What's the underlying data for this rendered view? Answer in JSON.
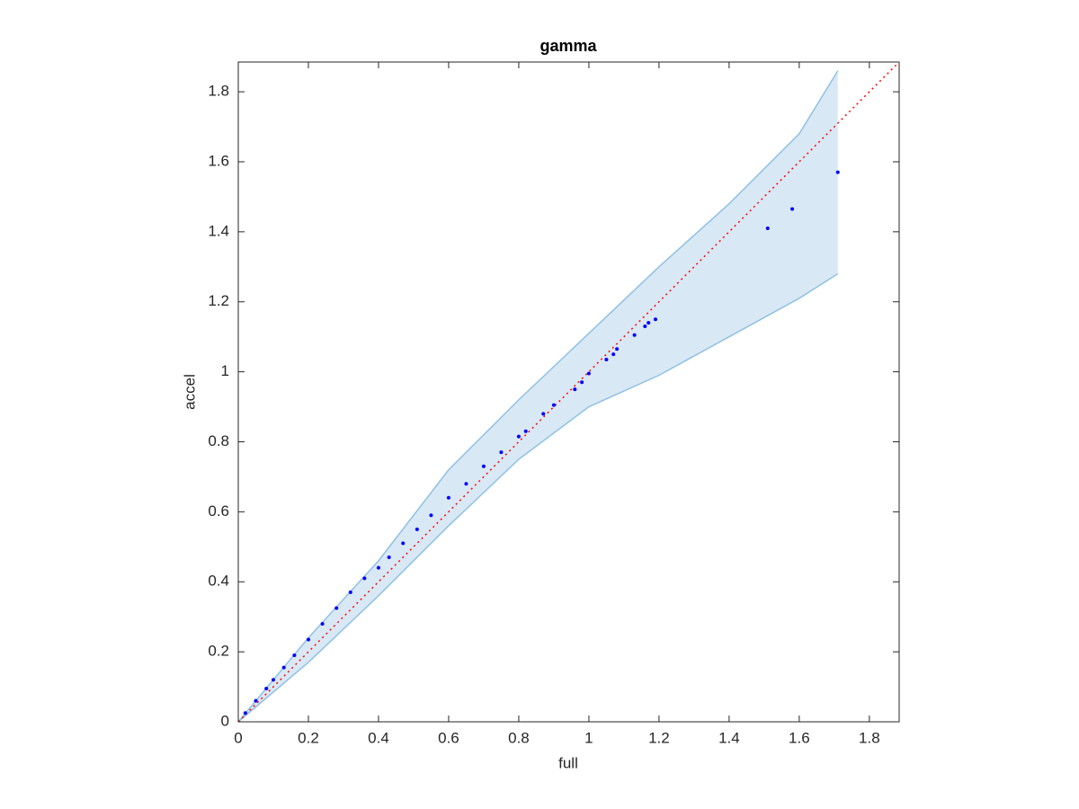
{
  "chart_data": {
    "type": "scatter",
    "title": "gamma",
    "x_label": "full",
    "y_label": "accel",
    "xlim": [
      0,
      1.885
    ],
    "ylim": [
      0,
      1.885
    ],
    "xticks": [
      0,
      0.2,
      0.4,
      0.6,
      0.8,
      1,
      1.2,
      1.4,
      1.6,
      1.8
    ],
    "yticks": [
      0,
      0.2,
      0.4,
      0.6,
      0.8,
      1,
      1.2,
      1.4,
      1.6,
      1.8
    ],
    "band": {
      "color": "#d9e8f5",
      "edge_color": "#8fc1e3",
      "x": [
        0,
        0.2,
        0.4,
        0.6,
        0.8,
        1.0,
        1.2,
        1.4,
        1.6,
        1.71
      ],
      "upper": [
        0,
        0.24,
        0.46,
        0.72,
        0.92,
        1.11,
        1.3,
        1.48,
        1.68,
        1.86
      ],
      "lower": [
        0,
        0.17,
        0.36,
        0.56,
        0.75,
        0.9,
        0.99,
        1.1,
        1.21,
        1.28
      ]
    },
    "reference_line": {
      "color": "#ff0000",
      "style": "dotted"
    },
    "series": [
      {
        "color": "#0000ff",
        "x": [
          0.02,
          0.05,
          0.08,
          0.1,
          0.13,
          0.16,
          0.2,
          0.24,
          0.28,
          0.32,
          0.36,
          0.4,
          0.43,
          0.47,
          0.51,
          0.55,
          0.6,
          0.65,
          0.7,
          0.75,
          0.8,
          0.82,
          0.87,
          0.9,
          0.96,
          0.98,
          1.0,
          1.05,
          1.07,
          1.08,
          1.13,
          1.16,
          1.17,
          1.19,
          1.51,
          1.58,
          1.71
        ],
        "values": [
          0.025,
          0.06,
          0.095,
          0.12,
          0.155,
          0.19,
          0.235,
          0.28,
          0.325,
          0.37,
          0.41,
          0.44,
          0.47,
          0.51,
          0.55,
          0.59,
          0.64,
          0.68,
          0.73,
          0.77,
          0.815,
          0.83,
          0.88,
          0.905,
          0.95,
          0.97,
          0.995,
          1.035,
          1.05,
          1.065,
          1.105,
          1.13,
          1.14,
          1.15,
          1.41,
          1.465,
          1.57
        ]
      }
    ]
  }
}
